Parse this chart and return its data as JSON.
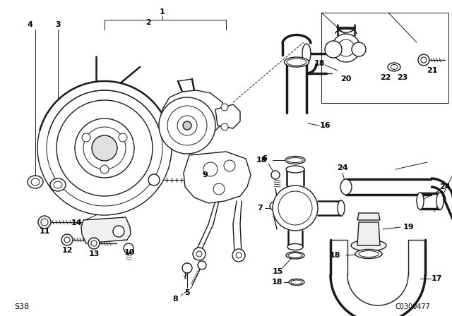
{
  "bg_color": "#ffffff",
  "line_color": "#1a1a1a",
  "fig_width": 6.4,
  "fig_height": 4.48,
  "dpi": 100,
  "watermark": "C0300477",
  "series_code": "S38",
  "lw_thin": 0.7,
  "lw_main": 1.0,
  "lw_thick": 1.8,
  "lw_hose": 2.5
}
